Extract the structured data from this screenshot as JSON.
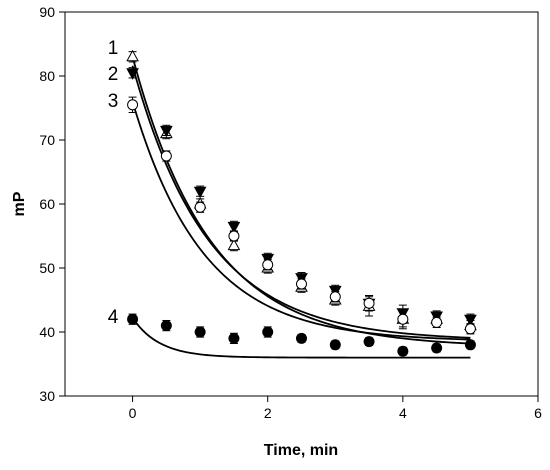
{
  "chart_data": {
    "type": "scatter",
    "title": "",
    "xlabel": "Time, min",
    "ylabel": "mP",
    "xlim": [
      -1,
      6
    ],
    "ylim": [
      30,
      90
    ],
    "xticks": [
      0,
      2,
      4,
      6
    ],
    "yticks": [
      30,
      40,
      50,
      60,
      70,
      80,
      90
    ],
    "grid": false,
    "series": [
      {
        "label": "1",
        "marker": "triangle-up-open",
        "x": [
          0,
          0.5,
          1,
          1.5,
          2,
          2.5,
          3,
          3.5,
          4,
          4.5,
          5
        ],
        "y": [
          83,
          71,
          60,
          53.5,
          50,
          47,
          45,
          44,
          42,
          42,
          41
        ],
        "err": [
          0.8,
          0.8,
          0.8,
          0.8,
          0.8,
          0.8,
          0.8,
          1.5,
          1.5,
          0.8,
          0.8
        ],
        "fit": {
          "a": 45.4,
          "b": 1.15,
          "c": 37.6
        }
      },
      {
        "label": "2",
        "marker": "triangle-down-filled",
        "x": [
          0,
          0.5,
          1,
          1.5,
          2,
          2.5,
          3,
          3.5,
          4,
          4.5,
          5
        ],
        "y": [
          80.5,
          71.5,
          62,
          56.5,
          51.5,
          48.5,
          46.5,
          44.5,
          43,
          42.5,
          42
        ],
        "err": [
          0.8,
          0.8,
          0.8,
          0.8,
          0.8,
          0.8,
          0.8,
          1.2,
          1.2,
          0.8,
          0.8
        ],
        "fit": {
          "a": 43.0,
          "b": 1.12,
          "c": 38.6
        }
      },
      {
        "label": "3",
        "marker": "circle-open",
        "x": [
          0,
          0.5,
          1,
          1.5,
          2,
          2.5,
          3,
          3.5,
          4,
          4.5,
          5
        ],
        "y": [
          75.5,
          67.5,
          59.5,
          55,
          50.5,
          47.5,
          45.5,
          44.5,
          42,
          41.5,
          40.5
        ],
        "err": [
          1.2,
          0.8,
          0.8,
          0.8,
          0.8,
          0.8,
          0.8,
          1.2,
          1.2,
          0.8,
          0.8
        ],
        "fit": {
          "a": 37.5,
          "b": 1.05,
          "c": 38.5
        }
      },
      {
        "label": "4",
        "marker": "circle-filled",
        "x": [
          0,
          0.5,
          1,
          1.5,
          2,
          2.5,
          3,
          3.5,
          4,
          4.5,
          5
        ],
        "y": [
          42,
          41,
          40,
          39,
          40,
          39,
          38,
          38.5,
          37,
          37.5,
          38
        ],
        "err": [
          0.8,
          0.8,
          0.8,
          0.8,
          0.8,
          0.6,
          0.6,
          0.6,
          0.6,
          0.6,
          0.6
        ],
        "fit": {
          "a": 6.2,
          "b": 0.4,
          "c": 36.0
        }
      }
    ]
  }
}
